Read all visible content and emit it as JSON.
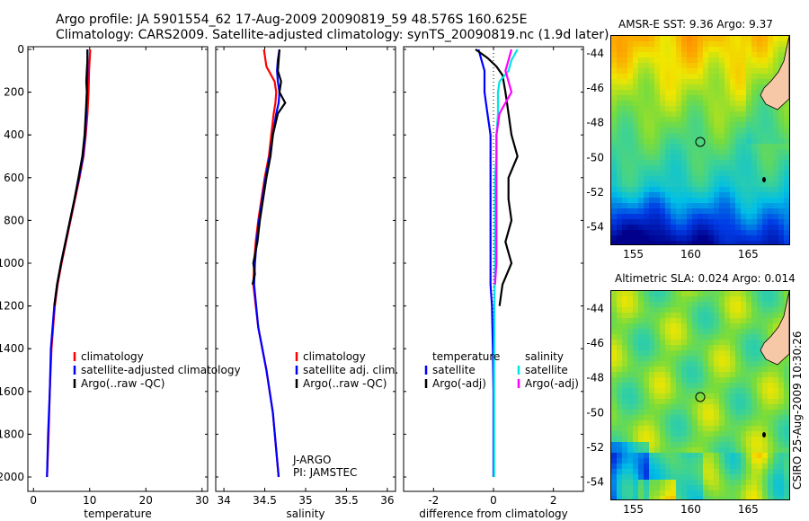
{
  "header": {
    "line1": "Argo profile: JA 5901554_62 17-Aug-2009 20090819_59 48.576S 160.625E",
    "line2": "Climatology: CARS2009. Satellite-adjusted climatology: synTS_20090819.nc (1.9d later)"
  },
  "colors": {
    "climatology": "#ff0000",
    "satellite": "#0000ff",
    "argo": "#000000",
    "temp_diff": "#000000",
    "sal_satellite": "#00e5e5",
    "sal_argo": "#ff00ff"
  },
  "chart_data": [
    {
      "type": "line",
      "name": "temperature-profile",
      "xlabel": "temperature",
      "ylabel": "",
      "xlim": [
        -1,
        31
      ],
      "ylim": [
        2050,
        0
      ],
      "xticks": [
        "0",
        "10",
        "20",
        "30"
      ],
      "yticks": [
        "0",
        "200",
        "400",
        "600",
        "800",
        "1000",
        "1200",
        "1400",
        "1600",
        "1800",
        "2000"
      ],
      "legend": [
        "climatology",
        "satellite-adjusted climatology",
        "Argo(..raw -QC)"
      ],
      "series": [
        {
          "name": "climatology",
          "depth": [
            0,
            100,
            200,
            300,
            400,
            500,
            600,
            700,
            800,
            900,
            1000,
            1100,
            1200,
            1300,
            1400,
            1600,
            1800,
            2000
          ],
          "values": [
            10.1,
            9.9,
            9.8,
            9.6,
            9.3,
            8.9,
            8.2,
            7.4,
            6.6,
            5.8,
            5.0,
            4.3,
            3.8,
            3.5,
            3.2,
            2.9,
            2.7,
            2.4
          ]
        },
        {
          "name": "satellite",
          "depth": [
            0,
            100,
            200,
            300,
            400,
            500,
            600,
            700,
            800,
            900,
            1000,
            1100,
            1200,
            1300,
            1400,
            1600,
            1800,
            2000
          ],
          "values": [
            9.6,
            9.6,
            9.5,
            9.4,
            9.2,
            8.8,
            8.1,
            7.3,
            6.5,
            5.7,
            4.9,
            4.2,
            3.7,
            3.4,
            3.1,
            2.9,
            2.6,
            2.4
          ]
        },
        {
          "name": "Argo",
          "depth": [
            0,
            50,
            100,
            150,
            200,
            250,
            300,
            400,
            500,
            600,
            700,
            800,
            900,
            1000,
            1100,
            1200
          ],
          "values": [
            9.6,
            9.6,
            9.5,
            9.4,
            9.5,
            9.4,
            9.3,
            9.1,
            8.7,
            8.0,
            7.3,
            6.5,
            5.7,
            4.9,
            4.2,
            3.7
          ]
        }
      ]
    },
    {
      "type": "line",
      "name": "salinity-profile",
      "xlabel": "salinity",
      "xlim": [
        33.9,
        36.1
      ],
      "ylim": [
        2050,
        0
      ],
      "xticks": [
        "34",
        "34.5",
        "35",
        "35.5",
        "36"
      ],
      "legend": [
        "climatology",
        "satellite adj. clim.",
        "Argo(..raw -QC)"
      ],
      "annotation": [
        "J-ARGO",
        "PI: JAMSTEC"
      ],
      "series": [
        {
          "name": "climatology",
          "depth": [
            0,
            80,
            150,
            200,
            250,
            300,
            400,
            500,
            600,
            700,
            800,
            900,
            1000,
            1100,
            1300,
            1500,
            1700,
            2000
          ],
          "values": [
            34.49,
            34.52,
            34.62,
            34.64,
            34.63,
            34.61,
            34.58,
            34.55,
            34.5,
            34.46,
            34.42,
            34.39,
            34.37,
            34.36,
            34.42,
            34.52,
            34.6,
            34.67
          ]
        },
        {
          "name": "satellite",
          "depth": [
            0,
            50,
            100,
            150,
            200,
            250,
            300,
            400,
            500,
            600,
            700,
            800,
            900,
            1000,
            1100,
            1300,
            1500,
            1700,
            2000
          ],
          "values": [
            34.68,
            34.66,
            34.65,
            34.66,
            34.68,
            34.67,
            34.64,
            34.6,
            34.56,
            34.51,
            34.47,
            34.43,
            34.4,
            34.38,
            34.37,
            34.42,
            34.52,
            34.6,
            34.67
          ]
        },
        {
          "name": "Argo",
          "depth": [
            0,
            50,
            100,
            150,
            200,
            250,
            300,
            400,
            500,
            600,
            700,
            800,
            900,
            1000,
            1050,
            1100
          ],
          "values": [
            34.68,
            34.67,
            34.66,
            34.7,
            34.68,
            34.75,
            34.66,
            34.6,
            34.57,
            34.52,
            34.48,
            34.44,
            34.41,
            34.36,
            34.38,
            34.35
          ]
        }
      ]
    },
    {
      "type": "line",
      "name": "difference-profile",
      "xlabel": "difference from climatology",
      "xlim": [
        -3,
        3
      ],
      "ylim": [
        2050,
        0
      ],
      "xticks": [
        "-2",
        "0",
        "2"
      ],
      "legend_temperature": [
        "temperature",
        "satellite",
        "Argo(-adj)"
      ],
      "legend_salinity": [
        "salinity",
        "satellite",
        "Argo(-adj)"
      ],
      "series": [
        {
          "name": "temperature satellite",
          "depth": [
            0,
            100,
            200,
            300,
            400,
            500,
            600,
            800,
            1000,
            1100,
            1200,
            1400,
            1600,
            1800,
            2000
          ],
          "values": [
            -0.5,
            -0.3,
            -0.3,
            -0.2,
            -0.1,
            -0.1,
            -0.1,
            -0.1,
            -0.1,
            -0.1,
            -0.05,
            -0.02,
            0,
            0,
            0
          ]
        },
        {
          "name": "temperature Argo",
          "depth": [
            0,
            40,
            80,
            120,
            200,
            300,
            400,
            500,
            600,
            700,
            800,
            900,
            1000,
            1100,
            1200
          ],
          "values": [
            -0.6,
            -0.2,
            0.1,
            0.3,
            0.4,
            0.5,
            0.6,
            0.8,
            0.5,
            0.5,
            0.6,
            0.4,
            0.6,
            0.3,
            0.2
          ]
        },
        {
          "name": "salinity satellite",
          "depth": [
            0,
            50,
            100,
            150,
            200,
            300,
            400,
            500,
            600,
            700,
            800,
            900,
            1000,
            1200,
            1500,
            1800,
            2000
          ],
          "values": [
            0.8,
            0.6,
            0.5,
            0.2,
            0.15,
            0.15,
            0.1,
            0.1,
            0.05,
            0.05,
            0.05,
            0.05,
            0.05,
            0.03,
            0.02,
            0.02,
            0.02
          ]
        },
        {
          "name": "salinity Argo",
          "depth": [
            0,
            50,
            100,
            150,
            200,
            300,
            400,
            500,
            600,
            700,
            800,
            900,
            1000,
            1100
          ],
          "values": [
            0.6,
            0.5,
            0.4,
            0.5,
            0.6,
            0.2,
            0.1,
            0.1,
            0.1,
            0.1,
            0.1,
            0.1,
            0.1,
            0.05
          ]
        }
      ]
    },
    {
      "type": "heatmap",
      "name": "sst-map",
      "title": "AMSR-E SST: 9.36 Argo: 9.37",
      "xticks": [
        "155",
        "160",
        "165"
      ],
      "yticks": [
        "-44",
        "-46",
        "-48",
        "-50",
        "-52",
        "-54"
      ],
      "xlim": [
        153,
        168.5
      ],
      "ylim": [
        -55,
        -43
      ]
    },
    {
      "type": "heatmap",
      "name": "sla-map",
      "title": "Altimetric SLA: 0.024 Argo: 0.014",
      "xticks": [
        "155",
        "160",
        "165"
      ],
      "yticks": [
        "-44",
        "-46",
        "-48",
        "-50",
        "-52",
        "-54"
      ],
      "xlim": [
        153,
        168.5
      ],
      "ylim": [
        -55,
        -43
      ]
    }
  ],
  "footer": {
    "credit": "CSIRO 25-Aug-2009 10:30:26"
  }
}
